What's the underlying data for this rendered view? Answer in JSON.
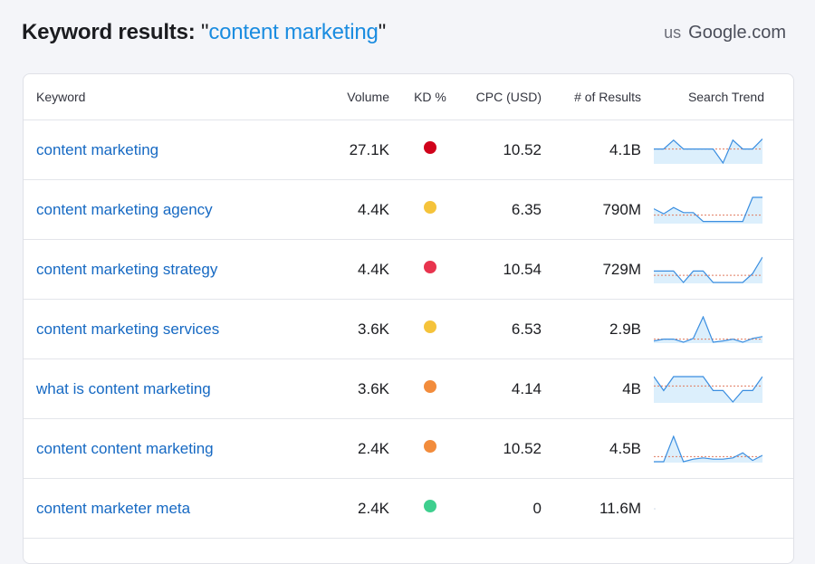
{
  "header": {
    "title_label": "Keyword results:",
    "quote_open": "\"",
    "query": "content marketing",
    "quote_close": "\"",
    "country_code": "us",
    "database": "Google.com"
  },
  "table": {
    "columns": {
      "keyword": "Keyword",
      "volume": "Volume",
      "kd": "KD %",
      "cpc": "CPC (USD)",
      "results": "# of Results",
      "trend": "Search Trend"
    },
    "rows": [
      {
        "keyword": "content marketing",
        "volume": "27.1K",
        "kd_color": "#d0021b",
        "cpc": "10.52",
        "results": "4.1B",
        "trend": [
          0.55,
          0.55,
          0.9,
          0.55,
          0.55,
          0.55,
          0.55,
          0.0,
          0.9,
          0.55,
          0.55,
          0.95
        ],
        "avg": 0.55
      },
      {
        "keyword": "content marketing agency",
        "volume": "4.4K",
        "kd_color": "#f5c33b",
        "cpc": "6.35",
        "results": "790M",
        "trend": [
          0.55,
          0.35,
          0.6,
          0.4,
          0.4,
          0.05,
          0.05,
          0.05,
          0.05,
          0.05,
          1.0,
          1.0
        ],
        "avg": 0.3
      },
      {
        "keyword": "content marketing strategy",
        "volume": "4.4K",
        "kd_color": "#e8344e",
        "cpc": "10.54",
        "results": "729M",
        "trend": [
          0.45,
          0.45,
          0.45,
          0.0,
          0.45,
          0.45,
          0.0,
          0.0,
          0.0,
          0.0,
          0.35,
          1.0
        ],
        "avg": 0.28
      },
      {
        "keyword": "content marketing services",
        "volume": "3.6K",
        "kd_color": "#f5c33b",
        "cpc": "6.53",
        "results": "2.9B",
        "trend": [
          0.05,
          0.12,
          0.12,
          0.0,
          0.15,
          1.0,
          0.0,
          0.05,
          0.12,
          0.0,
          0.15,
          0.22
        ],
        "avg": 0.12
      },
      {
        "keyword": "what is content marketing",
        "volume": "3.6K",
        "kd_color": "#f28c3c",
        "cpc": "4.14",
        "results": "4B",
        "trend": [
          1.0,
          0.45,
          1.0,
          1.0,
          1.0,
          1.0,
          0.45,
          0.45,
          0.0,
          0.45,
          0.45,
          1.0
        ],
        "avg": 0.63
      },
      {
        "keyword": "content content marketing",
        "volume": "2.4K",
        "kd_color": "#f28c3c",
        "cpc": "10.52",
        "results": "4.5B",
        "trend": [
          0.0,
          0.0,
          1.0,
          0.0,
          0.1,
          0.15,
          0.1,
          0.1,
          0.15,
          0.35,
          0.05,
          0.25
        ],
        "avg": 0.2
      },
      {
        "keyword": "content marketer meta",
        "volume": "2.4K",
        "kd_color": "#3ecf8e",
        "cpc": "0",
        "results": "11.6M",
        "trend": [],
        "avg": null
      }
    ]
  },
  "colors": {
    "accent": "#1a8ce0",
    "link": "#1669c3",
    "spark_line": "#3a8ee0",
    "spark_fill": "#dceffc",
    "spark_avg": "#e07a5f"
  }
}
